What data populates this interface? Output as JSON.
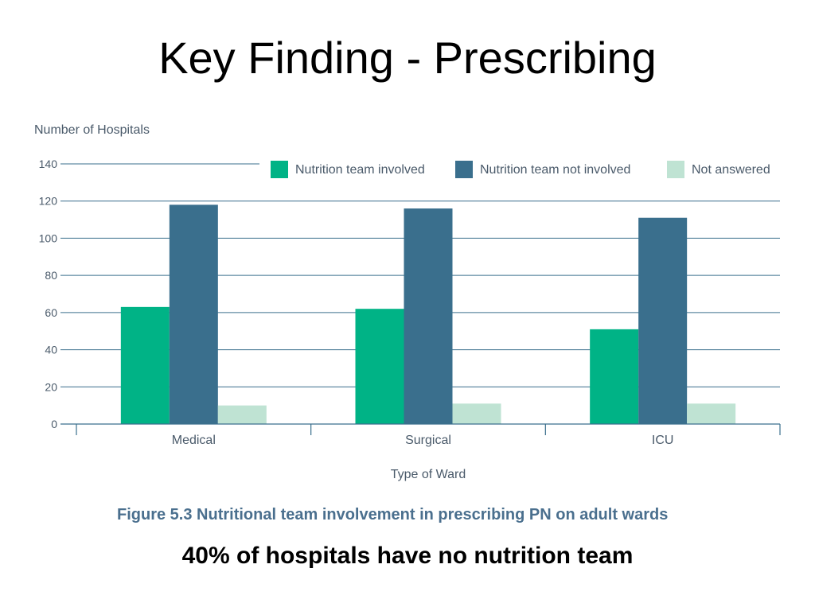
{
  "slide": {
    "title": "Key Finding - Prescribing",
    "caption": "Figure 5.3 Nutritional team involvement in prescribing PN on adult wards",
    "finding": "40% of hospitals have no nutrition team"
  },
  "chart_data": {
    "type": "bar",
    "categories": [
      "Medical",
      "Surgical",
      "ICU"
    ],
    "series": [
      {
        "name": "Nutrition team involved",
        "values": [
          63,
          62,
          51
        ],
        "color": "#00b386"
      },
      {
        "name": "Nutrition team not involved",
        "values": [
          118,
          116,
          111
        ],
        "color": "#3a6f8d"
      },
      {
        "name": "Not answered",
        "values": [
          10,
          11,
          11
        ],
        "color": "#bfe3d3"
      }
    ],
    "xlabel": "Type of Ward",
    "ylabel": "Number of Hospitals",
    "ylim": [
      0,
      140
    ],
    "yticks": [
      0,
      20,
      40,
      60,
      80,
      100,
      120,
      140
    ],
    "grid": true,
    "legend_position": "top-right"
  }
}
